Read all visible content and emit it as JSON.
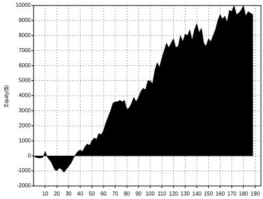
{
  "chart_data": {
    "type": "area",
    "y_label": "Equity($)",
    "color": "#000000",
    "grid": true,
    "xlim": [
      0,
      195
    ],
    "xticks": [
      10,
      20,
      30,
      40,
      50,
      60,
      70,
      80,
      90,
      100,
      110,
      120,
      130,
      140,
      150,
      160,
      170,
      180,
      190
    ],
    "ylim": [
      -2000,
      10000
    ],
    "yticks": [
      -2000,
      -1000,
      0,
      1000,
      2000,
      3000,
      4000,
      5000,
      6000,
      7000,
      8000,
      9000,
      10000
    ],
    "x": [
      0,
      2,
      5,
      8,
      10,
      12,
      15,
      18,
      20,
      22,
      24,
      26,
      28,
      30,
      32,
      34,
      36,
      38,
      40,
      42,
      44,
      46,
      48,
      50,
      52,
      54,
      56,
      58,
      60,
      62,
      64,
      66,
      68,
      70,
      72,
      74,
      76,
      78,
      80,
      82,
      84,
      86,
      88,
      90,
      92,
      94,
      96,
      98,
      100,
      102,
      104,
      106,
      108,
      110,
      112,
      114,
      116,
      118,
      120,
      122,
      124,
      126,
      128,
      130,
      132,
      134,
      136,
      138,
      140,
      142,
      144,
      146,
      148,
      150,
      152,
      154,
      156,
      158,
      160,
      162,
      164,
      166,
      168,
      170,
      172,
      174,
      176,
      178,
      180,
      182,
      184,
      186,
      188
    ],
    "values": [
      0,
      -100,
      -150,
      -100,
      300,
      -100,
      -400,
      -900,
      -1000,
      -800,
      -900,
      -1100,
      -900,
      -700,
      -500,
      -200,
      100,
      300,
      400,
      300,
      600,
      800,
      700,
      1000,
      1200,
      1100,
      1500,
      1400,
      1700,
      2200,
      2600,
      3000,
      3500,
      3600,
      3600,
      3700,
      3600,
      3700,
      3100,
      3200,
      3500,
      3900,
      3600,
      3900,
      4300,
      4500,
      4400,
      5000,
      5000,
      4800,
      5700,
      6200,
      5900,
      6500,
      7000,
      7500,
      7200,
      7500,
      7800,
      7200,
      7300,
      8000,
      7600,
      8100,
      8000,
      8400,
      7700,
      8400,
      8800,
      8200,
      8500,
      7500,
      7300,
      7800,
      7600,
      8000,
      8400,
      9000,
      9400,
      9100,
      9300,
      8900,
      9700,
      9600,
      10000,
      9400,
      9500,
      9700,
      10000,
      9300,
      9600,
      9500,
      9400
    ]
  }
}
